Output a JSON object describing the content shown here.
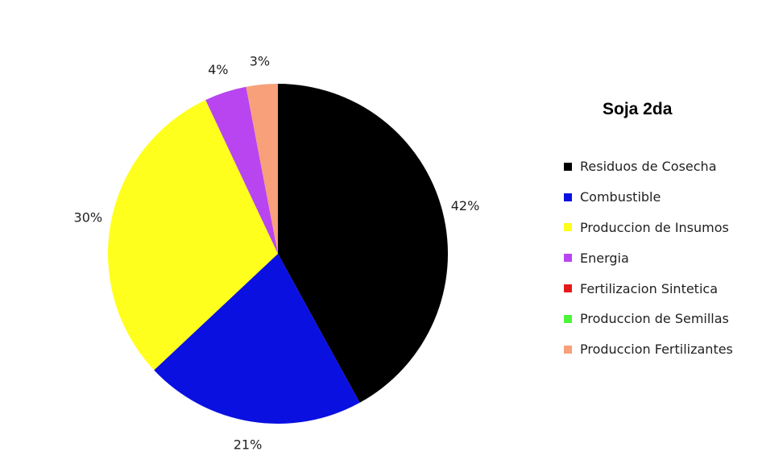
{
  "chart_data": {
    "type": "pie",
    "title": "Soja 2da",
    "legend_position": "right",
    "start": "12 o'clock, clockwise",
    "slices": [
      {
        "name": "Residuos de Cosecha",
        "value": 42,
        "label": "42%",
        "color": "#000000"
      },
      {
        "name": "Combustible",
        "value": 21,
        "label": "21%",
        "color": "#0a10e0"
      },
      {
        "name": "Produccion de Insumos",
        "value": 30,
        "label": "30%",
        "color": "#ffff1e"
      },
      {
        "name": "Energia",
        "value": 4,
        "label": "4%",
        "color": "#b845f0"
      },
      {
        "name": "Fertilizacion Sintetica",
        "value": 0,
        "label": "",
        "color": "#e31a1c"
      },
      {
        "name": "Produccion de Semillas",
        "value": 0,
        "label": "",
        "color": "#4cf53a"
      },
      {
        "name": "Produccion Fertilizantes",
        "value": 3,
        "label": "3%",
        "color": "#f7a07a"
      }
    ]
  }
}
